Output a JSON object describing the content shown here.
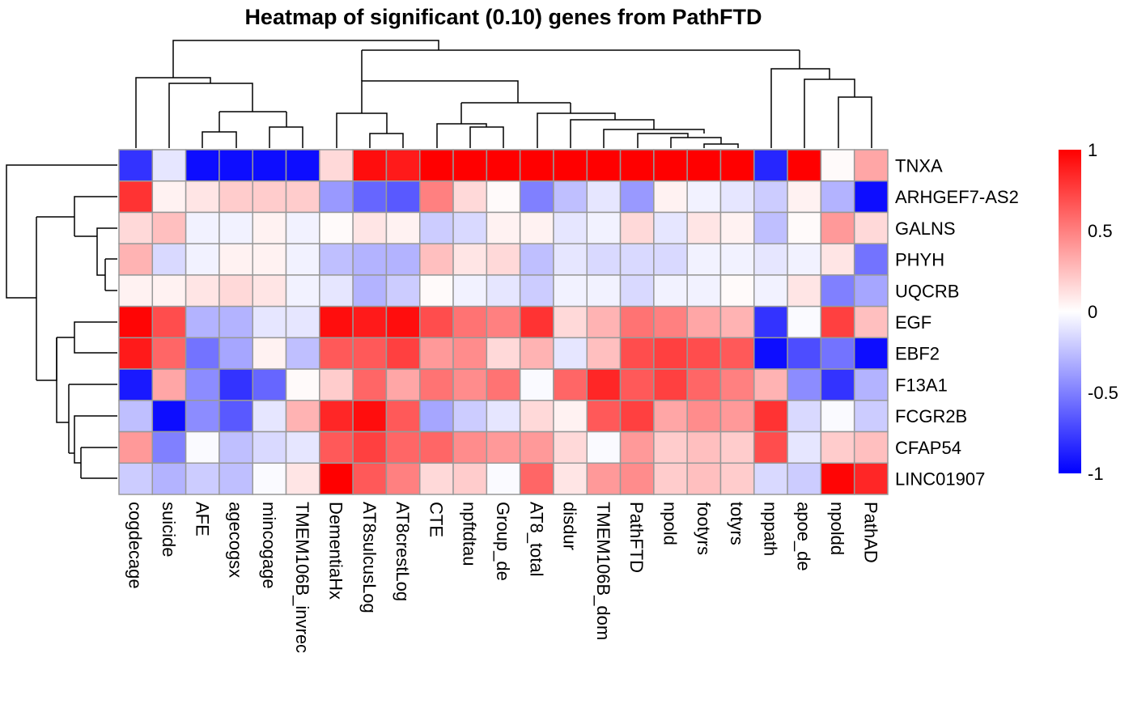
{
  "chart_data": {
    "type": "heatmap",
    "title": "Heatmap of significant (0.10) genes from  PathFTD",
    "columns": [
      "cogdecage",
      "suicide",
      "AFE",
      "agecogsx",
      "mincogage",
      "TMEM106B_invrec",
      "DementiaHx",
      "AT8sulcusLog",
      "AT8crestLog",
      "CTE",
      "npftdtau",
      "Group_de",
      "AT8_total",
      "disdur",
      "TMEM106B_dom",
      "PathFTD",
      "npold",
      "footyrs",
      "totyrs",
      "nppath",
      "apoe_de",
      "npoldd",
      "PathAD"
    ],
    "rows": [
      "TNXA",
      "ARHGEF7-AS2",
      "GALNS",
      "PHYH",
      "UQCRB",
      "EGF",
      "EBF2",
      "F13A1",
      "FCGR2B",
      "CFAP54",
      "LINC01907"
    ],
    "values": [
      [
        -0.8,
        -0.1,
        -0.95,
        -0.95,
        -0.95,
        -0.95,
        0.15,
        0.95,
        0.9,
        1,
        1,
        1,
        1,
        1,
        1,
        1,
        1,
        1,
        1,
        -0.85,
        1,
        0.02,
        0.35
      ],
      [
        0.8,
        0.05,
        0.1,
        0.2,
        0.2,
        0.2,
        -0.4,
        -0.6,
        -0.65,
        0.5,
        0.15,
        0.02,
        -0.5,
        -0.25,
        -0.1,
        -0.4,
        0.05,
        -0.05,
        -0.1,
        -0.2,
        0.05,
        -0.3,
        -0.95
      ],
      [
        0.15,
        0.25,
        -0.05,
        -0.05,
        0.05,
        -0.05,
        0.02,
        0.1,
        0.05,
        -0.2,
        -0.15,
        0.05,
        0.05,
        -0.1,
        -0.05,
        0.15,
        -0.1,
        0.1,
        0.05,
        -0.25,
        0.02,
        0.4,
        0.15
      ],
      [
        0.3,
        -0.15,
        -0.05,
        0.05,
        0.05,
        -0.05,
        -0.25,
        -0.3,
        -0.3,
        0.25,
        0.1,
        0.15,
        -0.25,
        -0.1,
        -0.15,
        -0.15,
        -0.15,
        -0.05,
        -0.05,
        -0.1,
        -0.05,
        0.1,
        -0.55
      ],
      [
        0.05,
        0.05,
        0.1,
        0.15,
        0.1,
        -0.05,
        -0.1,
        -0.3,
        -0.2,
        0.02,
        -0.05,
        -0.1,
        -0.2,
        -0.05,
        -0.05,
        -0.15,
        -0.05,
        -0.05,
        0.02,
        -0.05,
        0.1,
        -0.5,
        -0.35
      ],
      [
        0.98,
        0.7,
        -0.3,
        -0.3,
        -0.1,
        -0.1,
        0.95,
        0.9,
        0.95,
        0.7,
        0.55,
        0.5,
        0.8,
        0.15,
        0.3,
        0.55,
        0.5,
        0.35,
        0.3,
        -0.8,
        -0.02,
        0.75,
        0.25
      ],
      [
        0.9,
        0.6,
        -0.55,
        -0.35,
        0.05,
        -0.25,
        0.65,
        0.65,
        0.75,
        0.4,
        0.45,
        0.15,
        0.3,
        -0.1,
        0.25,
        0.7,
        0.75,
        0.7,
        0.65,
        -0.95,
        -0.7,
        -0.55,
        -0.95
      ],
      [
        -0.9,
        0.35,
        -0.45,
        -0.8,
        -0.6,
        0.02,
        0.2,
        0.6,
        0.35,
        0.55,
        0.45,
        0.55,
        -0.02,
        0.6,
        0.85,
        0.65,
        0.75,
        0.6,
        0.5,
        0.3,
        -0.45,
        -0.8,
        -0.3
      ],
      [
        -0.25,
        -0.95,
        -0.45,
        -0.65,
        -0.1,
        0.3,
        0.85,
        0.95,
        0.65,
        -0.35,
        -0.2,
        -0.1,
        0.15,
        0.05,
        0.65,
        0.75,
        0.35,
        0.45,
        0.4,
        0.8,
        -0.15,
        -0.02,
        -0.2
      ],
      [
        0.4,
        -0.5,
        -0.02,
        -0.25,
        -0.15,
        -0.1,
        0.65,
        0.75,
        0.6,
        0.6,
        0.45,
        0.4,
        0.4,
        0.15,
        -0.02,
        0.4,
        0.2,
        0.25,
        0.2,
        0.7,
        -0.1,
        0.2,
        0.25
      ],
      [
        -0.2,
        -0.3,
        -0.2,
        -0.25,
        -0.02,
        0.1,
        1,
        0.65,
        0.5,
        0.15,
        0.2,
        -0.02,
        0.6,
        0.1,
        0.4,
        0.45,
        0.2,
        0.25,
        0.2,
        -0.15,
        -0.2,
        0.98,
        0.85
      ]
    ],
    "colors": [
      "#0000FF",
      "#FFFFFF",
      "#FF0000"
    ],
    "clim": [
      -1,
      1
    ],
    "cticks": [
      1,
      0.5,
      0,
      -0.5,
      -1
    ]
  }
}
